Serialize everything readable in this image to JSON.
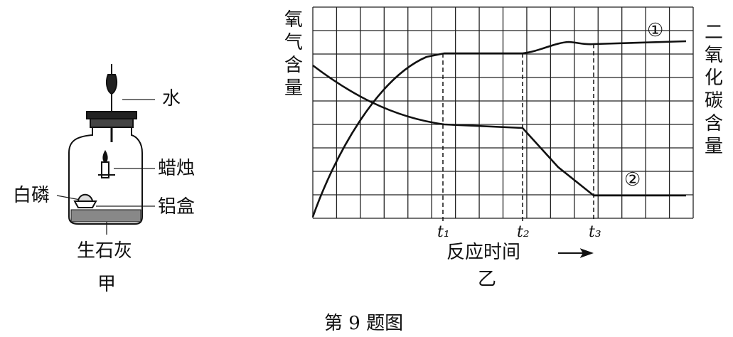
{
  "apparatus": {
    "water": "水",
    "candle": "蜡烛",
    "white_phosphorus": "白磷",
    "aluminum_box": "铝盒",
    "quicklime": "生石灰",
    "caption": "甲"
  },
  "graph": {
    "left_axis_label": "氧气含量",
    "right_axis_label": "二氧化碳含量",
    "curve_1": "①",
    "curve_2": "②",
    "time_marks": [
      "t₁",
      "t₂",
      "t₃"
    ],
    "x_axis_label": "反应时间",
    "caption": "乙"
  },
  "figure_caption": "第 9 题图"
}
